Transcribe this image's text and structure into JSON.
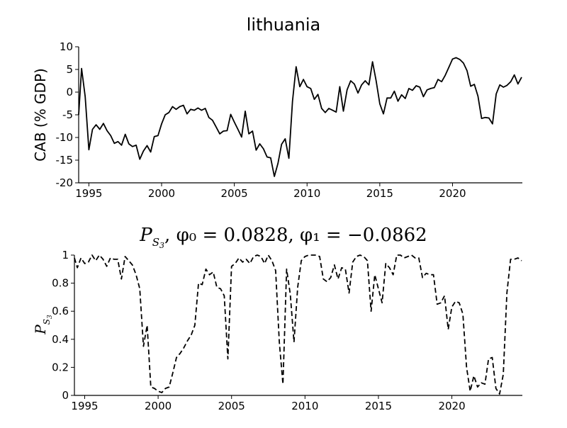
{
  "chart_data": [
    {
      "type": "line",
      "title": "lithuania",
      "xlabel": "",
      "ylabel": "CAB (% GDP)",
      "xlim": [
        1994.3,
        2024.8
      ],
      "ylim": [
        -20,
        10
      ],
      "xticks": [
        1995,
        2000,
        2005,
        2010,
        2015,
        2020
      ],
      "yticks": [
        -20,
        -15,
        -10,
        -5,
        0,
        5,
        10
      ],
      "grid": false,
      "line_style": "solid",
      "color": "#000000",
      "series": [
        {
          "x": [
            1994.25,
            1994.5,
            1994.75,
            1995.0,
            1995.25,
            1995.5,
            1995.75,
            1996.0,
            1996.25,
            1996.5,
            1996.75,
            1997.0,
            1997.25,
            1997.5,
            1997.75,
            1998.0,
            1998.25,
            1998.5,
            1998.75,
            1999.0,
            1999.25,
            1999.5,
            1999.75,
            2000.0,
            2000.25,
            2000.5,
            2000.75,
            2001.0,
            2001.25,
            2001.5,
            2001.75,
            2002.0,
            2002.25,
            2002.5,
            2002.75,
            2003.0,
            2003.25,
            2003.5,
            2003.75,
            2004.0,
            2004.25,
            2004.5,
            2004.75,
            2005.0,
            2005.25,
            2005.5,
            2005.75,
            2006.0,
            2006.25,
            2006.5,
            2006.75,
            2007.0,
            2007.25,
            2007.5,
            2007.75,
            2008.0,
            2008.25,
            2008.5,
            2008.75,
            2009.0,
            2009.25,
            2009.5,
            2009.75,
            2010.0,
            2010.25,
            2010.5,
            2010.75,
            2011.0,
            2011.25,
            2011.5,
            2011.75,
            2012.0,
            2012.25,
            2012.5,
            2012.75,
            2013.0,
            2013.25,
            2013.5,
            2013.75,
            2014.0,
            2014.25,
            2014.5,
            2014.75,
            2015.0,
            2015.25,
            2015.5,
            2015.75,
            2016.0,
            2016.25,
            2016.5,
            2016.75,
            2017.0,
            2017.25,
            2017.5,
            2017.75,
            2018.0,
            2018.25,
            2018.5,
            2018.75,
            2019.0,
            2019.25,
            2019.5,
            2019.75,
            2020.0,
            2020.25,
            2020.5,
            2020.75,
            2021.0,
            2021.25,
            2021.5,
            2021.75,
            2022.0,
            2022.25,
            2022.5,
            2022.75,
            2023.0,
            2023.25,
            2023.5,
            2023.75,
            2024.0,
            2024.25,
            2024.5,
            2024.75
          ],
          "values": [
            -5,
            5.2,
            -1,
            -12.7,
            -8.2,
            -7.2,
            -8.2,
            -6.9,
            -8.5,
            -9.6,
            -11.3,
            -10.9,
            -11.7,
            -9.3,
            -11.4,
            -12,
            -11.7,
            -14.8,
            -13,
            -11.8,
            -13.2,
            -9.8,
            -9.6,
            -7,
            -5,
            -4.5,
            -3.2,
            -3.8,
            -3.2,
            -2.9,
            -4.8,
            -3.8,
            -4,
            -3.5,
            -4,
            -3.6,
            -5.6,
            -6.2,
            -7.7,
            -9.2,
            -8.6,
            -8.5,
            -4.9,
            -6.6,
            -8.2,
            -9.9,
            -4.2,
            -9.2,
            -8.6,
            -12.8,
            -11.4,
            -12.5,
            -14.3,
            -14.5,
            -18.6,
            -15.7,
            -11.5,
            -10.3,
            -14.6,
            -2,
            5.6,
            1.2,
            2.8,
            1.2,
            0.8,
            -1.6,
            -0.5,
            -3.6,
            -4.5,
            -3.6,
            -4,
            -4.4,
            1.2,
            -4.2,
            0.5,
            2.5,
            1.8,
            -0.2,
            1.6,
            2.5,
            1.6,
            6.7,
            2.5,
            -2.6,
            -4.8,
            -1.3,
            -1.3,
            0.2,
            -2,
            -0.6,
            -1.4,
            0.8,
            0.4,
            1.4,
            1.1,
            -1,
            0.5,
            0.8,
            1,
            2.8,
            2.3,
            3.7,
            5.5,
            7.3,
            7.6,
            7.2,
            6.4,
            4.7,
            1.3,
            1.7,
            -0.9,
            -5.8,
            -5.6,
            -5.7,
            -7,
            -0.4,
            1.6,
            1.1,
            1.5,
            2.3,
            3.8,
            1.8,
            3.3
          ]
        }
      ]
    },
    {
      "type": "line",
      "title": "P_{S_3}, φ_0 = 0.0828, φ_1 = −0.0862",
      "title_parts": {
        "p_sym": "P",
        "s_sub": "S",
        "s_subsub": "3",
        "rest": ", φ₀ = 0.0828, φ₁ = −0.0862"
      },
      "xlabel": "",
      "ylabel": "P_{S_3}",
      "ylabel_parts": {
        "p_sym": "P",
        "s_sub": "S",
        "s_subsub": "3"
      },
      "xlim": [
        1994.3,
        2024.8
      ],
      "ylim": [
        0,
        1
      ],
      "xticks": [
        1995,
        2000,
        2005,
        2010,
        2015,
        2020
      ],
      "yticks": [
        0,
        0.2,
        0.4,
        0.6,
        0.8,
        1
      ],
      "ytick_labels": [
        "0",
        "0.2",
        "0.4",
        "0.6",
        "0.8",
        "1"
      ],
      "grid": false,
      "line_style": "dashed",
      "color": "#000000",
      "series": [
        {
          "x": [
            1994.25,
            1994.5,
            1994.75,
            1995.0,
            1995.25,
            1995.5,
            1995.75,
            1996.0,
            1996.25,
            1996.5,
            1996.75,
            1997.0,
            1997.25,
            1997.5,
            1997.75,
            1998.0,
            1998.25,
            1998.5,
            1998.75,
            1999.0,
            1999.25,
            1999.5,
            1999.75,
            2000.0,
            2000.25,
            2000.5,
            2000.75,
            2001.0,
            2001.25,
            2001.5,
            2001.75,
            2002.0,
            2002.25,
            2002.5,
            2002.75,
            2003.0,
            2003.25,
            2003.5,
            2003.75,
            2004.0,
            2004.25,
            2004.5,
            2004.75,
            2005.0,
            2005.25,
            2005.5,
            2005.75,
            2006.0,
            2006.25,
            2006.5,
            2006.75,
            2007.0,
            2007.25,
            2007.5,
            2007.75,
            2008.0,
            2008.25,
            2008.5,
            2008.75,
            2009.0,
            2009.25,
            2009.5,
            2009.75,
            2010.0,
            2010.25,
            2010.5,
            2010.75,
            2011.0,
            2011.25,
            2011.5,
            2011.75,
            2012.0,
            2012.25,
            2012.5,
            2012.75,
            2013.0,
            2013.25,
            2013.5,
            2013.75,
            2014.0,
            2014.25,
            2014.5,
            2014.75,
            2015.0,
            2015.25,
            2015.5,
            2015.75,
            2016.0,
            2016.25,
            2016.5,
            2016.75,
            2017.0,
            2017.25,
            2017.5,
            2017.75,
            2018.0,
            2018.25,
            2018.5,
            2018.75,
            2019.0,
            2019.25,
            2019.5,
            2019.75,
            2020.0,
            2020.25,
            2020.5,
            2020.75,
            2021.0,
            2021.25,
            2021.5,
            2021.75,
            2022.0,
            2022.25,
            2022.5,
            2022.75,
            2023.0,
            2023.25,
            2023.5,
            2023.75,
            2024.0,
            2024.25,
            2024.5,
            2024.75
          ],
          "values": [
            0.98,
            0.91,
            0.98,
            0.94,
            0.95,
            1.0,
            0.96,
            1.0,
            0.97,
            0.92,
            0.98,
            0.97,
            0.97,
            0.83,
            0.99,
            0.96,
            0.93,
            0.86,
            0.76,
            0.35,
            0.5,
            0.06,
            0.05,
            0.03,
            0.02,
            0.05,
            0.06,
            0.16,
            0.27,
            0.3,
            0.34,
            0.39,
            0.43,
            0.5,
            0.8,
            0.79,
            0.9,
            0.86,
            0.88,
            0.77,
            0.76,
            0.71,
            0.26,
            0.92,
            0.94,
            0.98,
            0.95,
            0.97,
            0.94,
            0.99,
            1.0,
            0.99,
            0.94,
            1.0,
            0.96,
            0.89,
            0.38,
            0.08,
            0.9,
            0.72,
            0.38,
            0.77,
            0.96,
            0.99,
            1.0,
            1.0,
            1.0,
            0.99,
            0.83,
            0.81,
            0.84,
            0.93,
            0.83,
            0.91,
            0.9,
            0.73,
            0.95,
            0.99,
            1.0,
            0.99,
            0.96,
            0.6,
            0.86,
            0.76,
            0.66,
            0.94,
            0.91,
            0.86,
            1.0,
            1.0,
            0.98,
            0.99,
            1.0,
            0.98,
            0.98,
            0.84,
            0.87,
            0.86,
            0.86,
            0.65,
            0.66,
            0.71,
            0.47,
            0.63,
            0.67,
            0.66,
            0.58,
            0.2,
            0.03,
            0.14,
            0.06,
            0.09,
            0.08,
            0.26,
            0.27,
            0.05,
            0.01,
            0.15,
            0.73,
            0.97,
            0.97,
            0.98,
            0.96
          ]
        }
      ]
    }
  ]
}
